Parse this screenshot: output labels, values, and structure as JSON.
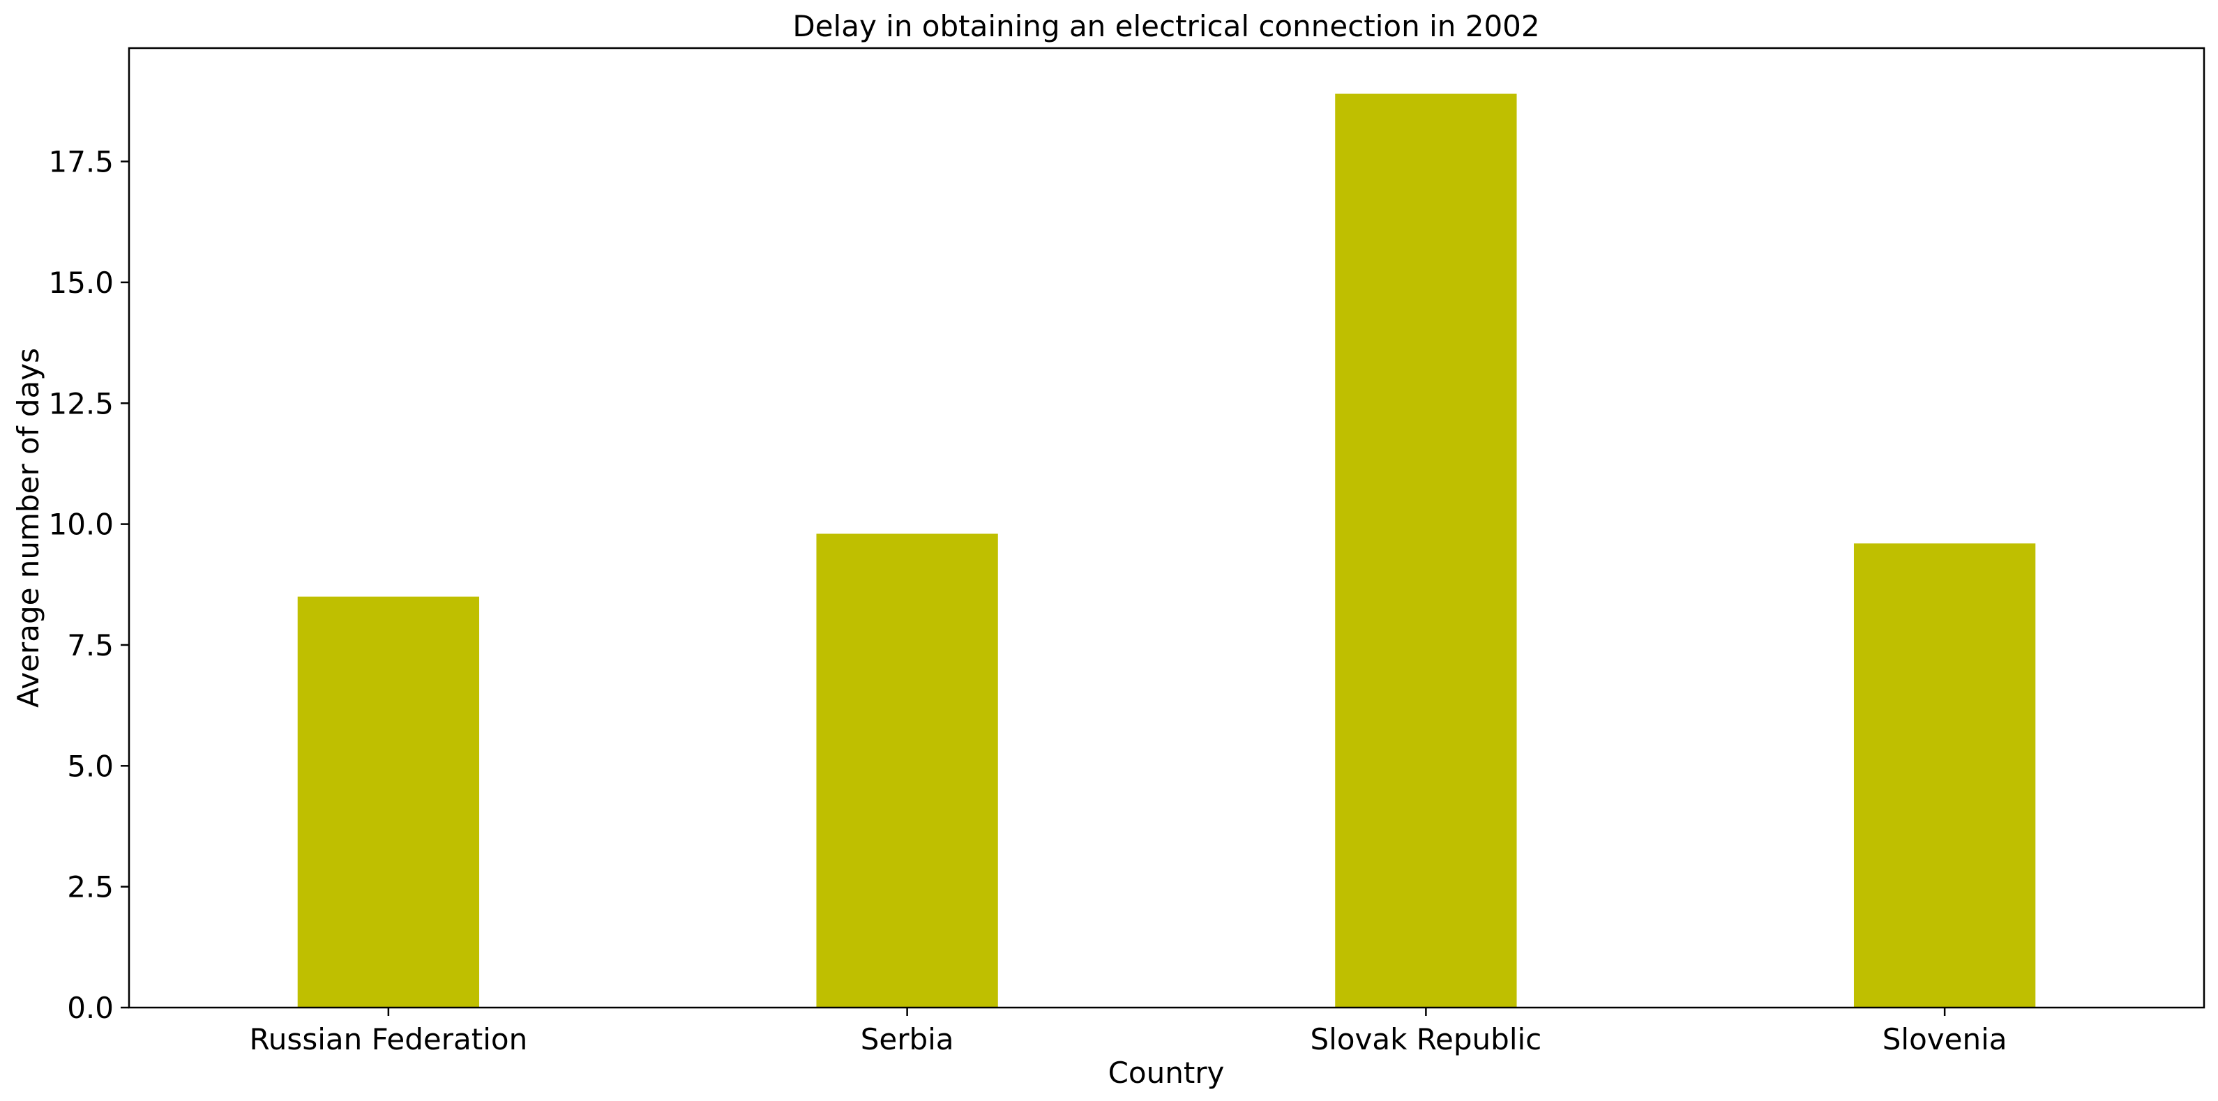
{
  "chart_data": {
    "type": "bar",
    "title": "Delay in obtaining an electrical connection in 2002",
    "xlabel": "Country",
    "ylabel": "Average number of days",
    "categories": [
      "Russian Federation",
      "Serbia",
      "Slovak Republic",
      "Slovenia"
    ],
    "values": [
      8.5,
      9.8,
      18.9,
      9.6
    ],
    "ylim": [
      0,
      19.845
    ],
    "yticks": [
      0.0,
      2.5,
      5.0,
      7.5,
      10.0,
      12.5,
      15.0,
      17.5
    ],
    "ytick_labels": [
      "0.0",
      "2.5",
      "5.0",
      "7.5",
      "10.0",
      "12.5",
      "15.0",
      "17.5"
    ],
    "bar_color": "#bfbf00",
    "grid": false,
    "legend": "none"
  }
}
